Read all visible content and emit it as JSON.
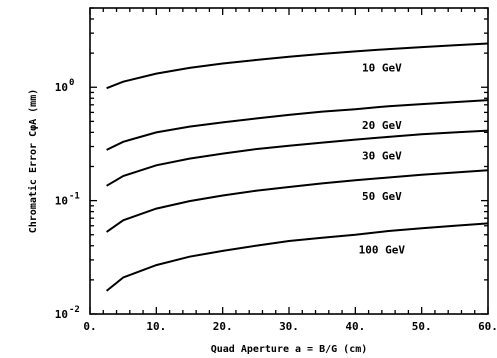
{
  "chart_data": {
    "type": "line",
    "title": "",
    "xlabel": "Quad Aperture a = B/G (cm)",
    "ylabel": "Chromatic Error CφA (mm)",
    "xlim": [
      0,
      60
    ],
    "ylim": [
      0.01,
      5
    ],
    "yscale": "log",
    "x_ticks": [
      "0.",
      "10.",
      "20.",
      "30.",
      "40.",
      "50.",
      "60."
    ],
    "y_ticks": [
      {
        "base": "10",
        "exp": "-2"
      },
      {
        "base": "10",
        "exp": "-1"
      },
      {
        "base": "10",
        "exp": "0"
      }
    ],
    "grid": false,
    "x": [
      2.5,
      5,
      10,
      15,
      20,
      25,
      30,
      35,
      40,
      45,
      50,
      55,
      60
    ],
    "series": [
      {
        "name": "10 GeV",
        "values": [
          0.98,
          1.12,
          1.32,
          1.48,
          1.62,
          1.74,
          1.86,
          1.97,
          2.07,
          2.17,
          2.26,
          2.35,
          2.43
        ]
      },
      {
        "name": "20 GeV",
        "values": [
          0.28,
          0.33,
          0.4,
          0.45,
          0.49,
          0.53,
          0.57,
          0.61,
          0.64,
          0.68,
          0.71,
          0.74,
          0.77
        ]
      },
      {
        "name": "30 GeV",
        "values": [
          0.135,
          0.165,
          0.205,
          0.235,
          0.26,
          0.285,
          0.305,
          0.325,
          0.345,
          0.365,
          0.385,
          0.4,
          0.415
        ]
      },
      {
        "name": "50 GeV",
        "values": [
          0.053,
          0.067,
          0.085,
          0.099,
          0.111,
          0.122,
          0.132,
          0.142,
          0.151,
          0.16,
          0.169,
          0.177,
          0.185
        ]
      },
      {
        "name": "100 GeV",
        "values": [
          0.016,
          0.021,
          0.027,
          0.032,
          0.036,
          0.04,
          0.044,
          0.047,
          0.05,
          0.054,
          0.057,
          0.06,
          0.063
        ]
      }
    ]
  }
}
